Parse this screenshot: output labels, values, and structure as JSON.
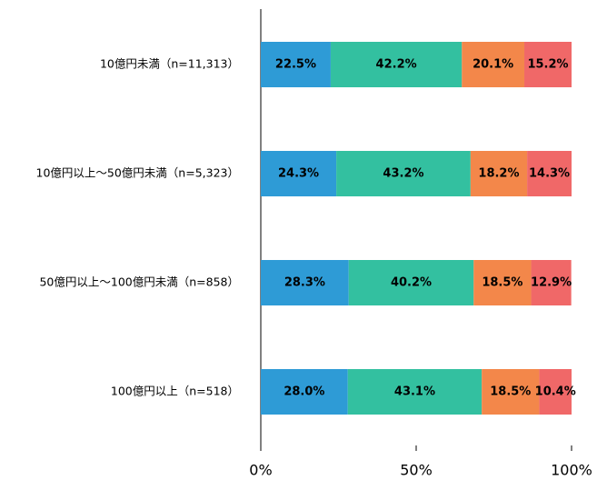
{
  "chart_data": {
    "type": "stacked-bar-horizontal",
    "categories": [
      "10億円未満（n=11,313）",
      "10億円以上～50億円未満（n=5,323）",
      "50億円以上～100億円未満（n=858）",
      "100億円以上（n=518）"
    ],
    "series": [
      {
        "color": "#2e9bd6",
        "values": [
          22.5,
          24.3,
          28.3,
          28.0
        ],
        "value_labels": [
          "22.5%",
          "24.3%",
          "28.3%",
          "28.0%"
        ]
      },
      {
        "color": "#33c0a0",
        "values": [
          42.2,
          43.2,
          40.2,
          43.1
        ],
        "value_labels": [
          "42.2%",
          "43.2%",
          "40.2%",
          "43.1%"
        ]
      },
      {
        "color": "#f3874a",
        "values": [
          20.1,
          18.2,
          18.5,
          18.5
        ],
        "value_labels": [
          "20.1%",
          "18.2%",
          "18.5%",
          "18.5%"
        ]
      },
      {
        "color": "#f06868",
        "values": [
          15.2,
          14.3,
          12.9,
          10.4
        ],
        "value_labels": [
          "15.2%",
          "14.3%",
          "12.9%",
          "10.4%"
        ]
      }
    ],
    "xlim": [
      0,
      100
    ],
    "xticks": [
      {
        "value": 0,
        "label": "0%"
      },
      {
        "value": 50,
        "label": "50%"
      },
      {
        "value": 100,
        "label": "100%"
      }
    ]
  }
}
